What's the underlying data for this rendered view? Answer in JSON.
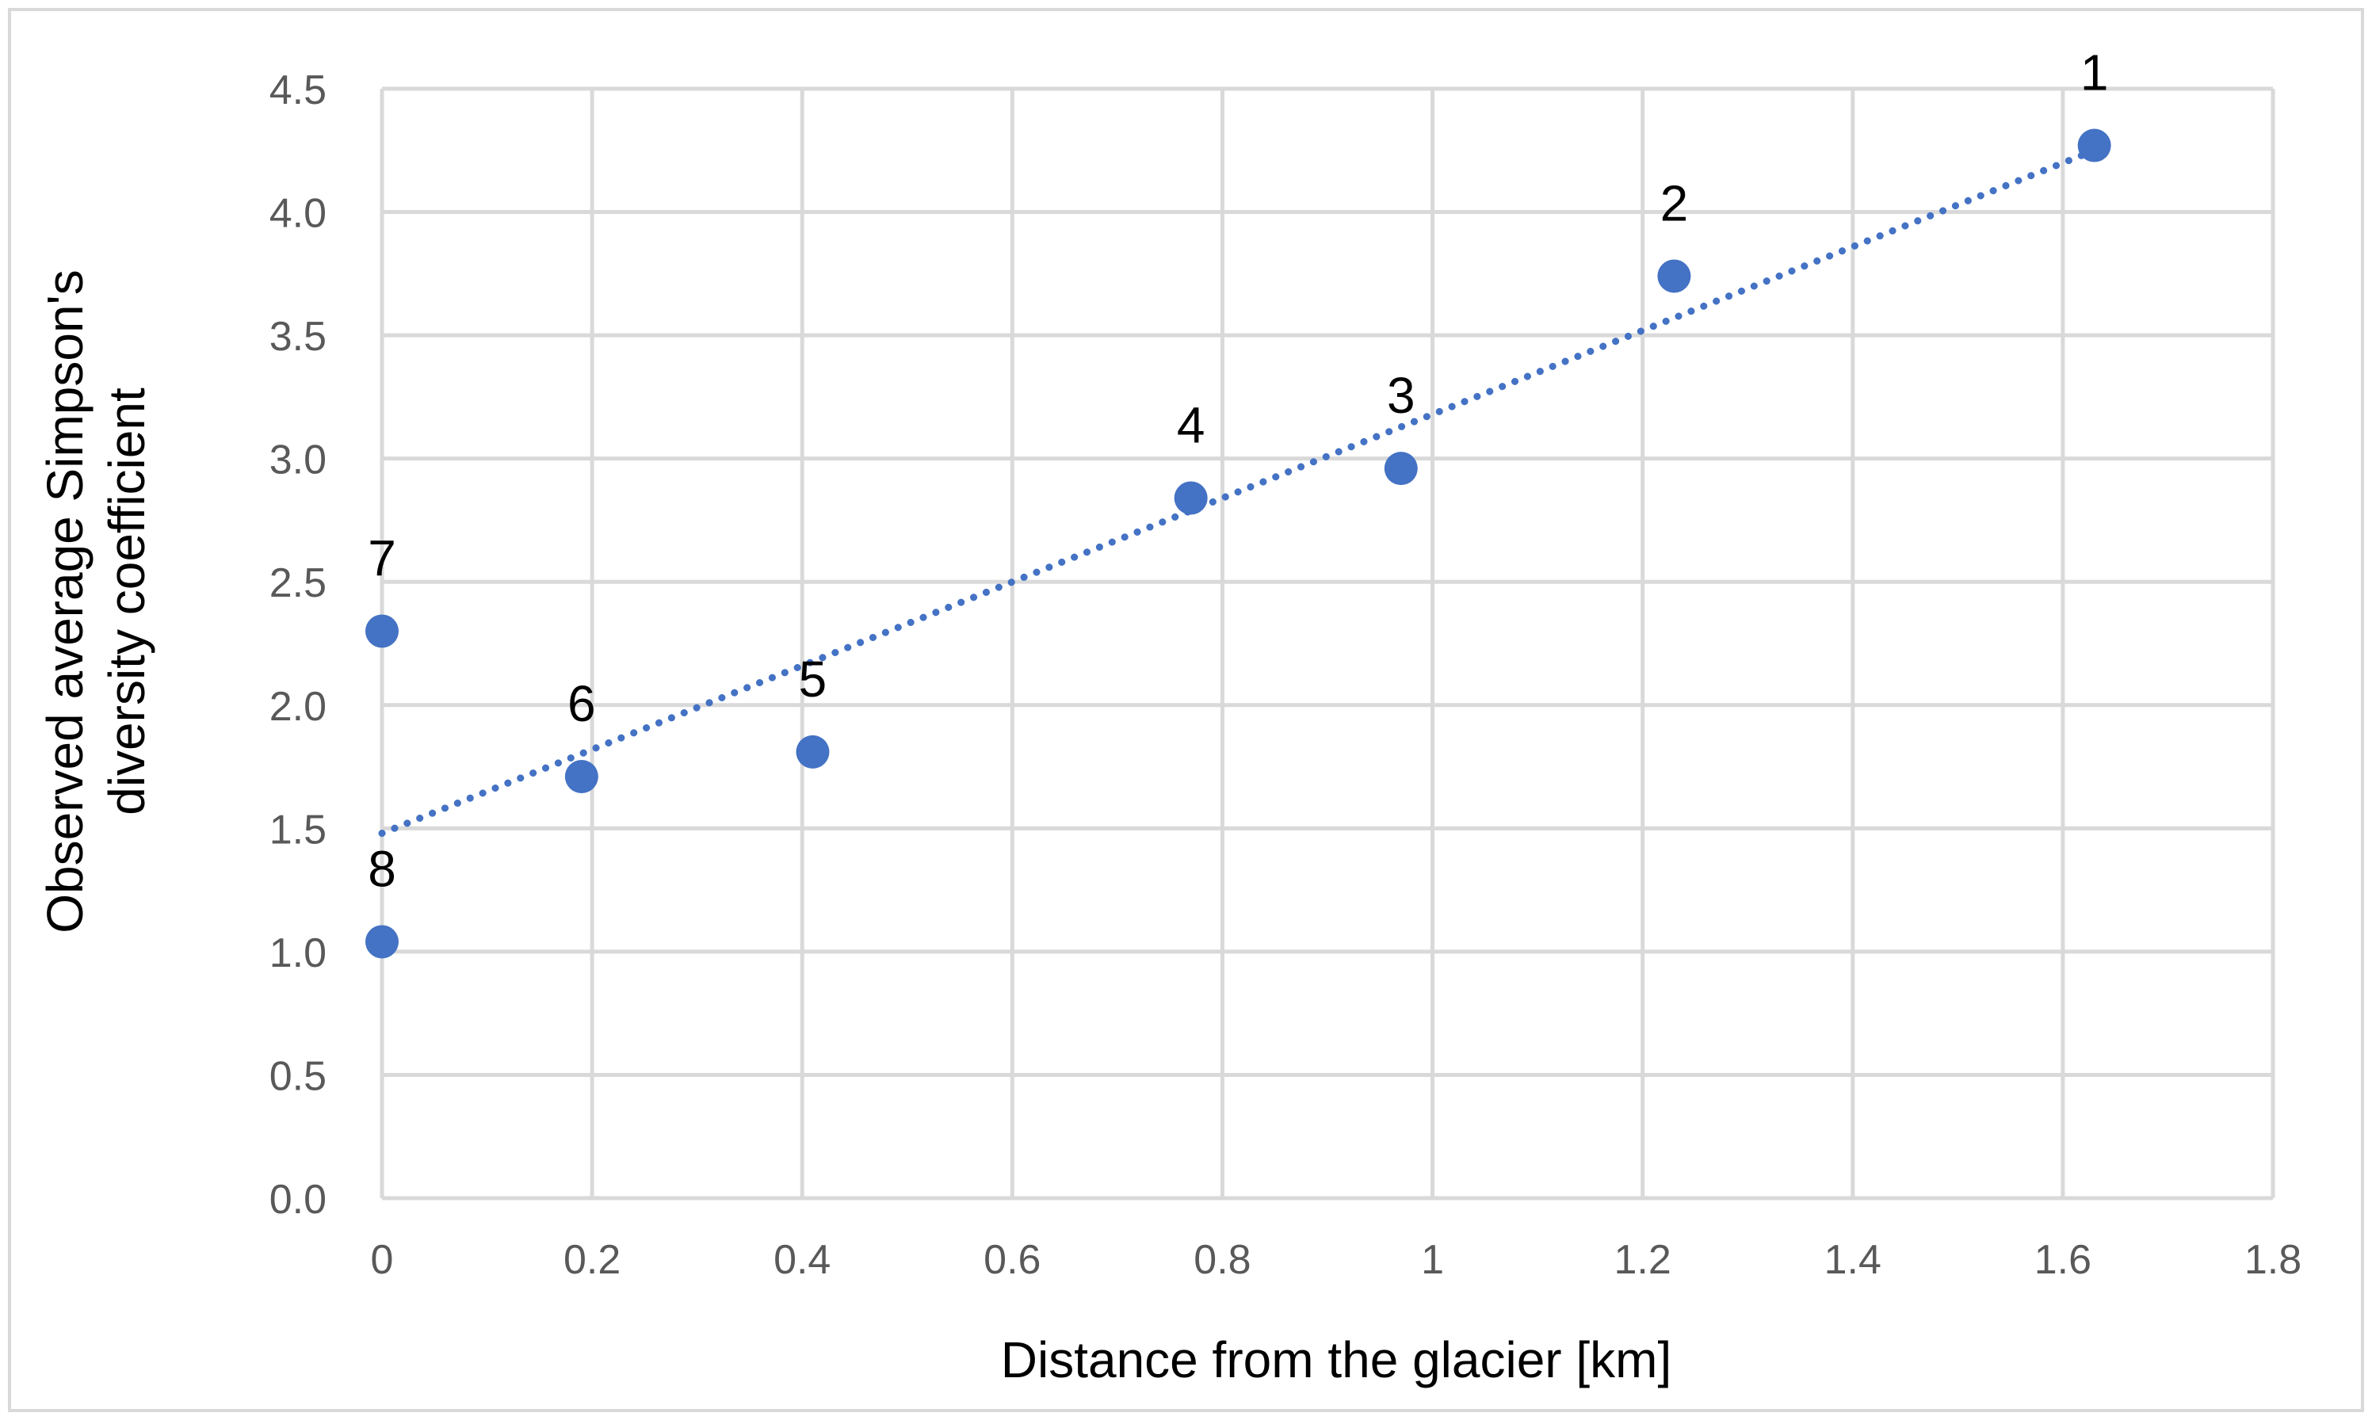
{
  "chart_data": {
    "type": "scatter",
    "title": "",
    "xlabel": "Distance from the glacier [km]",
    "ylabel_lines": [
      "Observed average Simpson's",
      "diversity coefficient"
    ],
    "xlim": [
      0,
      1.8
    ],
    "ylim": [
      0,
      4.5
    ],
    "x_ticks": [
      0,
      0.2,
      0.4,
      0.6,
      0.8,
      1,
      1.2,
      1.4,
      1.6,
      1.8
    ],
    "x_tick_labels": [
      "0",
      "0.2",
      "0.4",
      "0.6",
      "0.8",
      "1",
      "1.2",
      "1.4",
      "1.6",
      "1.8"
    ],
    "y_ticks": [
      0,
      0.5,
      1,
      1.5,
      2,
      2.5,
      3,
      3.5,
      4,
      4.5
    ],
    "y_tick_labels": [
      "0.0",
      "0.5",
      "1.0",
      "1.5",
      "2.0",
      "2.5",
      "3.0",
      "3.5",
      "4.0",
      "4.5"
    ],
    "grid": true,
    "marker_color": "#4472c4",
    "trendline_color": "#4472c4",
    "points": [
      {
        "label": "1",
        "x": 1.63,
        "y": 4.27
      },
      {
        "label": "2",
        "x": 1.23,
        "y": 3.74
      },
      {
        "label": "3",
        "x": 0.97,
        "y": 2.96
      },
      {
        "label": "4",
        "x": 0.77,
        "y": 2.84
      },
      {
        "label": "5",
        "x": 0.41,
        "y": 1.81
      },
      {
        "label": "6",
        "x": 0.19,
        "y": 1.71
      },
      {
        "label": "7",
        "x": 0.0,
        "y": 2.3
      },
      {
        "label": "8",
        "x": 0.0,
        "y": 1.04
      }
    ],
    "trendline": {
      "type": "linear",
      "x": [
        0,
        1.63
      ],
      "y": [
        1.48,
        4.25
      ]
    }
  }
}
